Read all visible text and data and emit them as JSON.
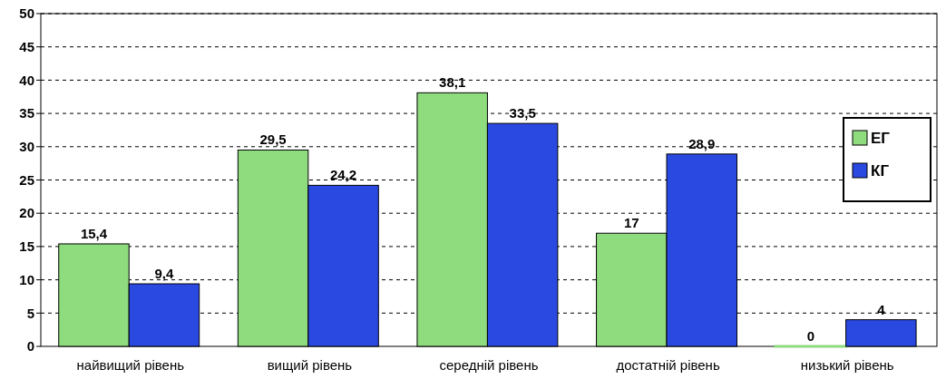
{
  "chart_data": {
    "type": "bar",
    "categories": [
      "найвищий рівень",
      "вищий  рівень",
      "середній рівень",
      "достатній рівень",
      "низький рівень"
    ],
    "series": [
      {
        "name": "ЕГ",
        "color": "#8fdc7f",
        "values": [
          15.4,
          29.5,
          38.1,
          17,
          0
        ],
        "value_labels": [
          "15,4",
          "29,5",
          "38,1",
          "17",
          "0"
        ]
      },
      {
        "name": "КГ",
        "color": "#2a49e0",
        "values": [
          9.4,
          24.2,
          33.5,
          28.9,
          4
        ],
        "value_labels": [
          "9,4",
          "24,2",
          "33,5",
          "28,9",
          "4"
        ]
      }
    ],
    "ylim": [
      0,
      50
    ],
    "yticks": [
      0,
      5,
      10,
      15,
      20,
      25,
      30,
      35,
      40,
      45,
      50
    ],
    "grid": "y",
    "legend": "right"
  }
}
